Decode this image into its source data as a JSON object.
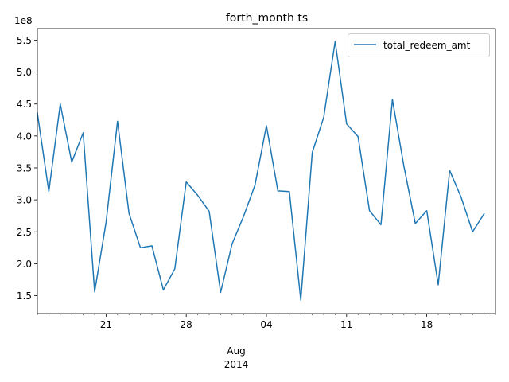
{
  "chart_data": {
    "type": "line",
    "title": "forth_month ts",
    "y_scale_label": "1e8",
    "x_axis": {
      "tick_labels": [
        {
          "date": "2014-07-21",
          "label": "21"
        },
        {
          "date": "2014-07-28",
          "label": "28"
        },
        {
          "date": "2014-08-04",
          "label": "04"
        },
        {
          "date": "2014-08-11",
          "label": "11"
        },
        {
          "date": "2014-08-18",
          "label": "18"
        }
      ],
      "month_label": "Aug",
      "year_label": "2014",
      "range": [
        "2014-07-15",
        "2014-08-24"
      ]
    },
    "y_axis": {
      "range": [
        1.22,
        5.68
      ],
      "ticks": [
        1.5,
        2.0,
        2.5,
        3.0,
        3.5,
        4.0,
        4.5,
        5.0,
        5.5
      ],
      "tick_labels": [
        "1.5",
        "2.0",
        "2.5",
        "3.0",
        "3.5",
        "4.0",
        "4.5",
        "5.0",
        "5.5"
      ]
    },
    "legend": {
      "position": "top-right"
    },
    "grid": false,
    "series": [
      {
        "name": "total_redeem_amt",
        "color": "#1f77b4",
        "points": [
          {
            "x": "2014-07-15",
            "y": 4.36
          },
          {
            "x": "2014-07-16",
            "y": 3.13
          },
          {
            "x": "2014-07-17",
            "y": 4.5
          },
          {
            "x": "2014-07-18",
            "y": 3.59
          },
          {
            "x": "2014-07-19",
            "y": 4.05
          },
          {
            "x": "2014-07-20",
            "y": 1.56
          },
          {
            "x": "2014-07-21",
            "y": 2.65
          },
          {
            "x": "2014-07-22",
            "y": 4.23
          },
          {
            "x": "2014-07-23",
            "y": 2.79
          },
          {
            "x": "2014-07-24",
            "y": 2.25
          },
          {
            "x": "2014-07-25",
            "y": 2.28
          },
          {
            "x": "2014-07-26",
            "y": 1.59
          },
          {
            "x": "2014-07-27",
            "y": 1.92
          },
          {
            "x": "2014-07-28",
            "y": 3.28
          },
          {
            "x": "2014-07-29",
            "y": 3.07
          },
          {
            "x": "2014-07-30",
            "y": 2.82
          },
          {
            "x": "2014-07-31",
            "y": 1.55
          },
          {
            "x": "2014-08-01",
            "y": 2.31
          },
          {
            "x": "2014-08-02",
            "y": 2.74
          },
          {
            "x": "2014-08-03",
            "y": 3.23
          },
          {
            "x": "2014-08-04",
            "y": 4.16
          },
          {
            "x": "2014-08-05",
            "y": 3.14
          },
          {
            "x": "2014-08-06",
            "y": 3.13
          },
          {
            "x": "2014-08-07",
            "y": 1.43
          },
          {
            "x": "2014-08-08",
            "y": 3.74
          },
          {
            "x": "2014-08-09",
            "y": 4.29
          },
          {
            "x": "2014-08-10",
            "y": 5.48
          },
          {
            "x": "2014-08-11",
            "y": 4.19
          },
          {
            "x": "2014-08-12",
            "y": 3.99
          },
          {
            "x": "2014-08-13",
            "y": 2.83
          },
          {
            "x": "2014-08-14",
            "y": 2.61
          },
          {
            "x": "2014-08-15",
            "y": 4.57
          },
          {
            "x": "2014-08-16",
            "y": 3.53
          },
          {
            "x": "2014-08-17",
            "y": 2.63
          },
          {
            "x": "2014-08-18",
            "y": 2.83
          },
          {
            "x": "2014-08-19",
            "y": 1.67
          },
          {
            "x": "2014-08-20",
            "y": 3.46
          },
          {
            "x": "2014-08-21",
            "y": 3.04
          },
          {
            "x": "2014-08-22",
            "y": 2.5
          },
          {
            "x": "2014-08-23",
            "y": 2.78
          }
        ]
      }
    ]
  }
}
